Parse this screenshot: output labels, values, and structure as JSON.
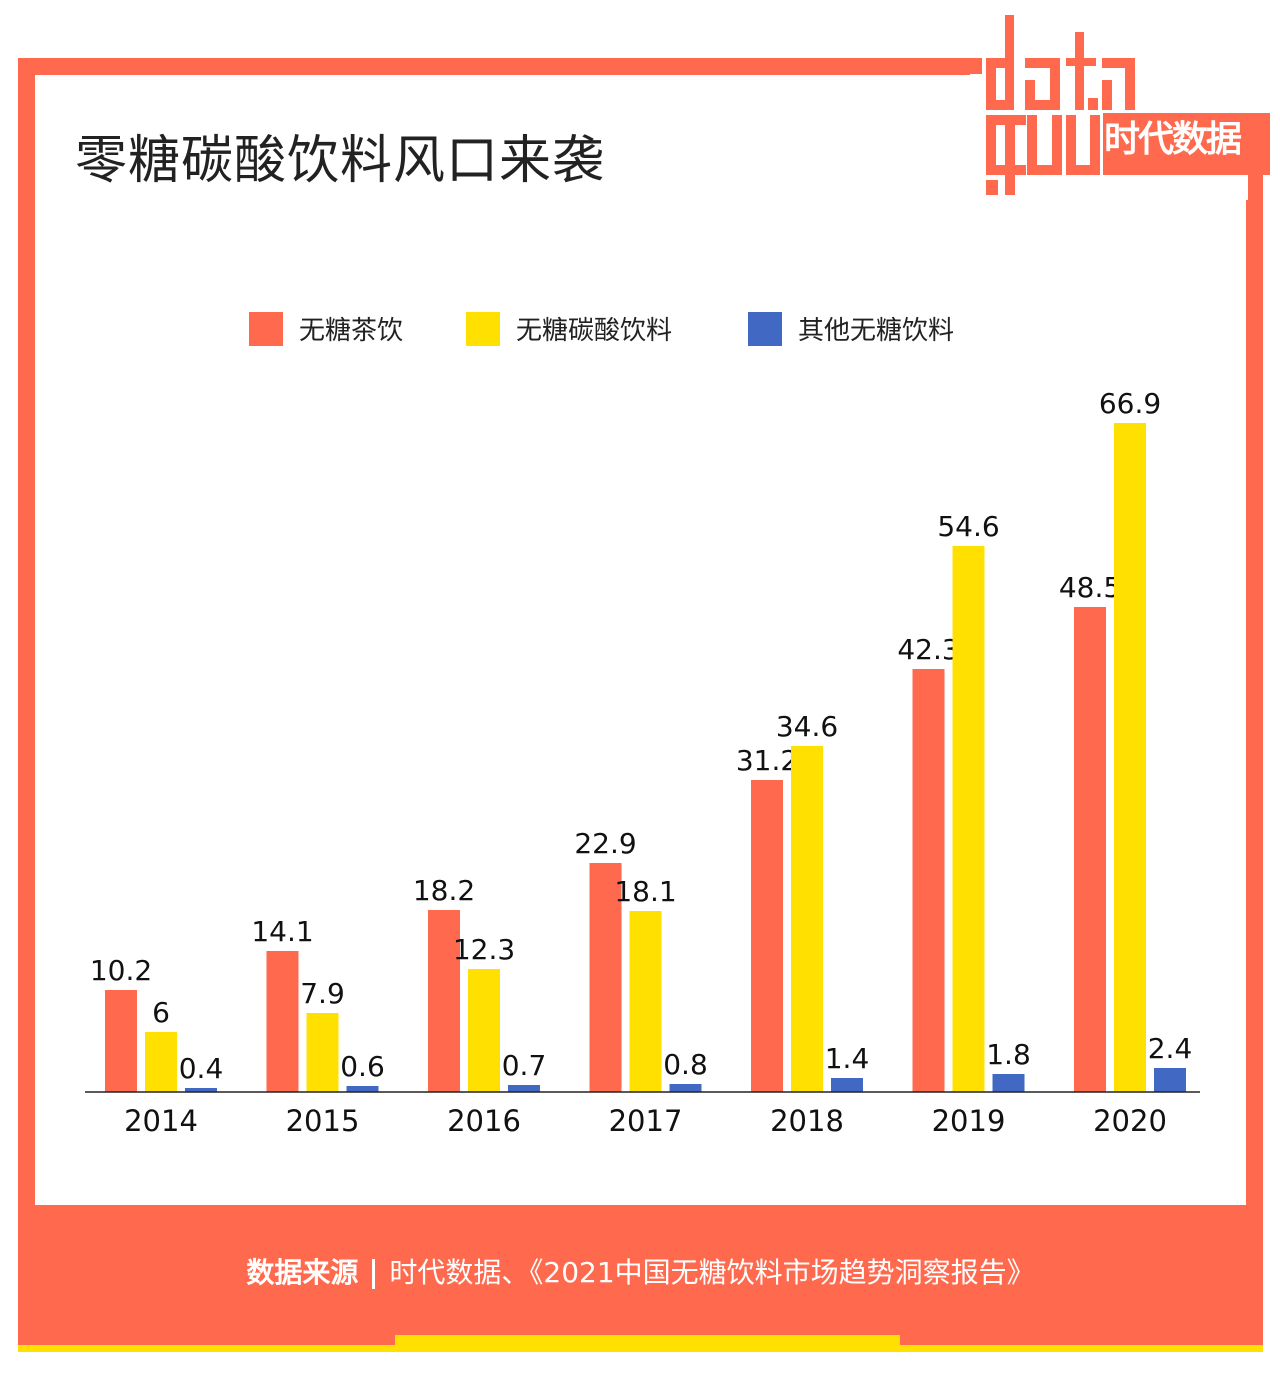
{
  "title": "零糖碳酸饮料风口来袭",
  "logo": {
    "text": "data gou",
    "subtitle": "时代数据"
  },
  "footer": {
    "label": "数据来源",
    "source": "时代数据、《2021中国无糖饮料市场趋势洞察报告》"
  },
  "chart_data": {
    "type": "bar",
    "title": "零糖碳酸饮料风口来袭",
    "categories": [
      "2014",
      "2015",
      "2016",
      "2017",
      "2018",
      "2019",
      "2020"
    ],
    "series": [
      {
        "name": "无糖茶饮",
        "color": "#FF6A4F",
        "values": [
          10.2,
          14.1,
          18.2,
          22.9,
          31.2,
          42.3,
          48.5
        ]
      },
      {
        "name": "无糖碳酸饮料",
        "color": "#FFE000",
        "values": [
          6,
          7.9,
          12.3,
          18.1,
          34.6,
          54.6,
          66.9
        ]
      },
      {
        "name": "其他无糖饮料",
        "color": "#4169C4",
        "values": [
          0.4,
          0.6,
          0.7,
          0.8,
          1.4,
          1.8,
          2.4
        ]
      }
    ],
    "ylim": [
      0,
      70
    ],
    "legend": "top-center",
    "grid": false
  }
}
